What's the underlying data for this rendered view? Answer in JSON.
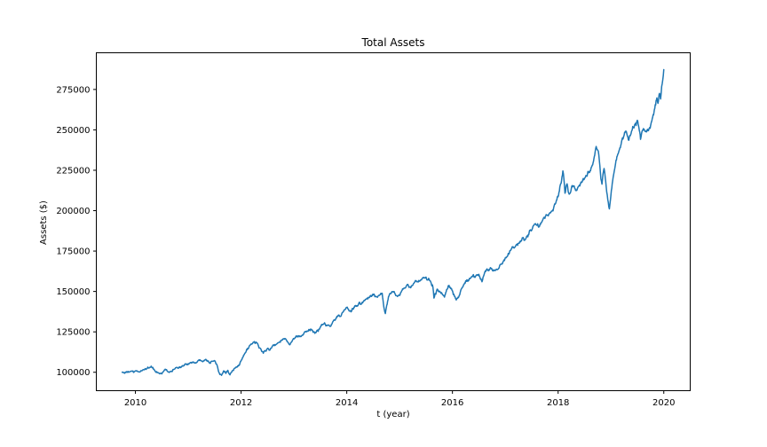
{
  "figure": {
    "background": "#ffffff"
  },
  "chart_data": {
    "type": "line",
    "title": "Total Assets",
    "xlabel": "t (year)",
    "ylabel": "Assets ($)",
    "grid": false,
    "legend": false,
    "line_color": "#1f77b4",
    "axis_color": "#000000",
    "xlim": [
      2009.26,
      2020.5
    ],
    "ylim": [
      88600,
      297700
    ],
    "x_ticks": [
      2010,
      2012,
      2014,
      2016,
      2018,
      2020
    ],
    "y_ticks": [
      100000,
      125000,
      150000,
      175000,
      200000,
      225000,
      250000,
      275000
    ],
    "series": [
      {
        "name": "Total Assets",
        "x": [
          2009.75,
          2009.79,
          2009.83,
          2009.87,
          2009.92,
          2009.96,
          2010.0,
          2010.04,
          2010.08,
          2010.17,
          2010.25,
          2010.33,
          2010.38,
          2010.42,
          2010.5,
          2010.54,
          2010.58,
          2010.63,
          2010.67,
          2010.75,
          2010.83,
          2010.92,
          2011.0,
          2011.08,
          2011.17,
          2011.25,
          2011.33,
          2011.38,
          2011.42,
          2011.46,
          2011.5,
          2011.54,
          2011.58,
          2011.63,
          2011.67,
          2011.71,
          2011.75,
          2011.79,
          2011.83,
          2011.88,
          2011.92,
          2011.96,
          2012.0,
          2012.04,
          2012.08,
          2012.13,
          2012.17,
          2012.21,
          2012.25,
          2012.29,
          2012.33,
          2012.38,
          2012.42,
          2012.46,
          2012.5,
          2012.54,
          2012.58,
          2012.63,
          2012.67,
          2012.71,
          2012.75,
          2012.79,
          2012.83,
          2012.88,
          2012.92,
          2012.96,
          2013.0,
          2013.08,
          2013.17,
          2013.25,
          2013.33,
          2013.38,
          2013.42,
          2013.5,
          2013.58,
          2013.63,
          2013.67,
          2013.75,
          2013.83,
          2013.92,
          2013.96,
          2014.0,
          2014.04,
          2014.08,
          2014.17,
          2014.25,
          2014.33,
          2014.42,
          2014.5,
          2014.54,
          2014.58,
          2014.63,
          2014.67,
          2014.71,
          2014.73,
          2014.79,
          2014.83,
          2014.88,
          2014.92,
          2014.96,
          2015.0,
          2015.04,
          2015.08,
          2015.13,
          2015.17,
          2015.21,
          2015.25,
          2015.33,
          2015.42,
          2015.46,
          2015.5,
          2015.54,
          2015.58,
          2015.63,
          2015.65,
          2015.67,
          2015.71,
          2015.75,
          2015.79,
          2015.83,
          2015.85,
          2015.92,
          2015.96,
          2016.0,
          2016.04,
          2016.08,
          2016.13,
          2016.17,
          2016.21,
          2016.25,
          2016.33,
          2016.42,
          2016.5,
          2016.54,
          2016.56,
          2016.58,
          2016.63,
          2016.67,
          2016.71,
          2016.75,
          2016.79,
          2016.83,
          2016.88,
          2016.92,
          2017.0,
          2017.08,
          2017.13,
          2017.17,
          2017.25,
          2017.33,
          2017.38,
          2017.42,
          2017.5,
          2017.58,
          2017.63,
          2017.67,
          2017.75,
          2017.83,
          2017.92,
          2017.96,
          2018.0,
          2018.04,
          2018.09,
          2018.11,
          2018.13,
          2018.15,
          2018.17,
          2018.19,
          2018.21,
          2018.25,
          2018.29,
          2018.33,
          2018.38,
          2018.42,
          2018.46,
          2018.5,
          2018.54,
          2018.58,
          2018.63,
          2018.67,
          2018.7,
          2018.72,
          2018.75,
          2018.77,
          2018.79,
          2018.81,
          2018.83,
          2018.85,
          2018.87,
          2018.9,
          2018.92,
          2018.94,
          2018.96,
          2018.97,
          2019.0,
          2019.04,
          2019.08,
          2019.12,
          2019.17,
          2019.21,
          2019.25,
          2019.29,
          2019.31,
          2019.33,
          2019.38,
          2019.42,
          2019.46,
          2019.5,
          2019.53,
          2019.56,
          2019.58,
          2019.63,
          2019.67,
          2019.71,
          2019.75,
          2019.79,
          2019.83,
          2019.87,
          2019.89,
          2019.92,
          2019.94,
          2019.96,
          2019.98,
          2020.0
        ],
        "y": [
          100000,
          99800,
          100400,
          100100,
          100600,
          100300,
          100900,
          100500,
          100200,
          101600,
          102600,
          103000,
          100300,
          99800,
          99000,
          100900,
          101500,
          100200,
          100600,
          102200,
          103300,
          104100,
          105300,
          106200,
          106400,
          107000,
          108000,
          107000,
          105600,
          106800,
          107100,
          104800,
          99900,
          98100,
          100900,
          99300,
          101200,
          98400,
          100800,
          102600,
          103100,
          104200,
          107200,
          109600,
          112000,
          114500,
          116800,
          117600,
          119000,
          118200,
          116200,
          113900,
          111800,
          113200,
          114600,
          113700,
          115200,
          116500,
          117400,
          118300,
          119600,
          120400,
          120900,
          118800,
          117000,
          118900,
          120600,
          121900,
          123000,
          125400,
          126600,
          125100,
          124600,
          127900,
          130600,
          129200,
          128800,
          132000,
          134600,
          137100,
          138600,
          140000,
          138200,
          137400,
          141300,
          142600,
          144500,
          146100,
          148300,
          147000,
          146400,
          147900,
          148900,
          139000,
          136300,
          146800,
          148600,
          149900,
          148100,
          146900,
          147500,
          150400,
          152000,
          153600,
          153200,
          152300,
          153900,
          155900,
          157500,
          158300,
          158900,
          157200,
          156600,
          152800,
          145900,
          148600,
          151400,
          150200,
          149300,
          147700,
          146500,
          153500,
          152200,
          150400,
          146900,
          145300,
          147600,
          151600,
          154100,
          156500,
          157900,
          159200,
          160600,
          157800,
          156000,
          158900,
          162400,
          163300,
          164000,
          163500,
          163200,
          163800,
          164400,
          166900,
          170800,
          174300,
          177600,
          176900,
          179800,
          183200,
          182100,
          184600,
          187900,
          191400,
          189800,
          192300,
          195200,
          197900,
          202400,
          205300,
          208600,
          215800,
          224600,
          219400,
          210800,
          214900,
          216600,
          211900,
          210200,
          213700,
          215400,
          212600,
          214800,
          216500,
          218200,
          220000,
          221700,
          223500,
          226900,
          230600,
          236200,
          239700,
          237400,
          234600,
          227800,
          219600,
          216400,
          222800,
          226100,
          218300,
          211500,
          206800,
          202300,
          201100,
          209800,
          220300,
          227600,
          233800,
          238900,
          244100,
          246800,
          249000,
          246300,
          243700,
          247600,
          251300,
          253700,
          255900,
          251200,
          244100,
          247900,
          250300,
          248700,
          249500,
          252600,
          257900,
          263400,
          269800,
          266400,
          272600,
          269100,
          276900,
          280800,
          287300
        ]
      }
    ]
  }
}
